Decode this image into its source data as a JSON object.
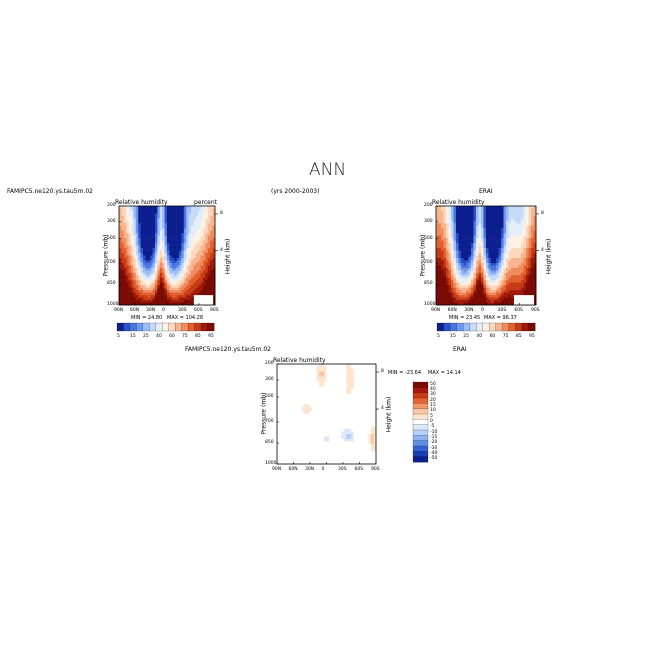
{
  "page_title": "ANN",
  "chart_data": [
    {
      "type": "heatmap",
      "case_label": "FAMIPC5.ne120.ys.tau5m.02",
      "years_label": "(yrs 2000-2003)",
      "title": "Relative humidity",
      "units": "percent",
      "xlabel": "",
      "ylabel": "Pressure (mb)",
      "ylabel_right": "Height (km)",
      "x_ticks": [
        "90N",
        "60N",
        "30N",
        "0",
        "30S",
        "60S",
        "90S"
      ],
      "y_ticks": [
        "200",
        "300",
        "500",
        "700",
        "850",
        "1000"
      ],
      "height_ticks": [
        "8",
        "4"
      ],
      "colorbar_levels": [
        "5",
        "15",
        "25",
        "40",
        "60",
        "75",
        "85",
        "95"
      ],
      "min_label": "MIN = 24.80",
      "max_label": "MAX = 104.28",
      "min": 24.8,
      "max": 104.28
    },
    {
      "type": "heatmap",
      "case_label": "ERAI",
      "title": "Relative humidity",
      "xlabel": "",
      "ylabel": "Pressure (mb)",
      "ylabel_right": "Height (km)",
      "x_ticks": [
        "90N",
        "60N",
        "30N",
        "0",
        "30S",
        "60S",
        "90S"
      ],
      "y_ticks": [
        "200",
        "300",
        "500",
        "700",
        "850",
        "1000"
      ],
      "height_ticks": [
        "8",
        "4"
      ],
      "colorbar_levels": [
        "5",
        "15",
        "25",
        "40",
        "60",
        "75",
        "85",
        "95"
      ],
      "min_label": "MIN = 23.45",
      "max_label": "MAX = 96.37",
      "min": 23.45,
      "max": 96.37
    },
    {
      "type": "heatmap",
      "case_label": "FAMIPC5.ne120.ys.tau5m.02",
      "diff_label": "- ERAI",
      "title": "Relative humidity",
      "xlabel": "",
      "ylabel": "Pressure (mb)",
      "ylabel_right": "Height (km)",
      "x_ticks": [
        "90N",
        "60N",
        "30N",
        "0",
        "30S",
        "60S",
        "90S"
      ],
      "y_ticks": [
        "200",
        "300",
        "500",
        "700",
        "850",
        "1000"
      ],
      "height_ticks": [
        "8",
        "4"
      ],
      "colorbar_levels": [
        "50",
        "40",
        "30",
        "20",
        "15",
        "10",
        "5",
        "0",
        "-5",
        "-10",
        "-15",
        "-20",
        "-30",
        "-40",
        "-50"
      ],
      "min_label": "MIN = -23.64",
      "max_label": "MAX = 14.14",
      "min": -23.64,
      "max": 14.14
    }
  ],
  "colors": {
    "full_scale": [
      "#0d1f8f",
      "#2a4fc9",
      "#4a74e0",
      "#6f97ec",
      "#9cbcf4",
      "#c4daf8",
      "#e4eefa",
      "#fdf1e4",
      "#fbd8bd",
      "#f7b58f",
      "#f08b5f",
      "#e0602f",
      "#c63b16",
      "#9e1a08",
      "#7a0a04"
    ],
    "diff_scale": [
      "#7a0a04",
      "#a4190a",
      "#c93a17",
      "#e2662f",
      "#f29868",
      "#f8c6a4",
      "#fde4cf",
      "#ffffff",
      "#dbe8fa",
      "#b6cff5",
      "#8fb2ee",
      "#5f8ee5",
      "#3563d6",
      "#1b3fb3",
      "#0d1f8f"
    ]
  }
}
